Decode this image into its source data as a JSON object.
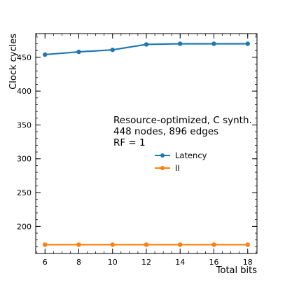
{
  "chart_data": {
    "type": "line",
    "title": "",
    "xlabel": "Total bits",
    "ylabel": "Clock cycles",
    "x": [
      6,
      8,
      10,
      12,
      14,
      16,
      18
    ],
    "xlim": [
      5.45,
      18.55
    ],
    "ylim": [
      160,
      485
    ],
    "xticks": [
      6,
      8,
      10,
      12,
      14,
      16,
      18
    ],
    "yticks": [
      200,
      250,
      300,
      350,
      400,
      450
    ],
    "x_minor_step": 0.5,
    "y_minor_step": 10,
    "grid": false,
    "legend_position": "center-right",
    "annotation": [
      "Resource-optimized, C synth.",
      "448 nodes, 896 edges",
      "RF = 1"
    ],
    "series": [
      {
        "name": "Latency",
        "color": "#1f77b4",
        "values": [
          454,
          458,
          461,
          469,
          470,
          470,
          470
        ]
      },
      {
        "name": "II",
        "color": "#ff7f0e",
        "values": [
          173,
          173,
          173,
          173,
          173,
          173,
          173
        ]
      }
    ]
  }
}
